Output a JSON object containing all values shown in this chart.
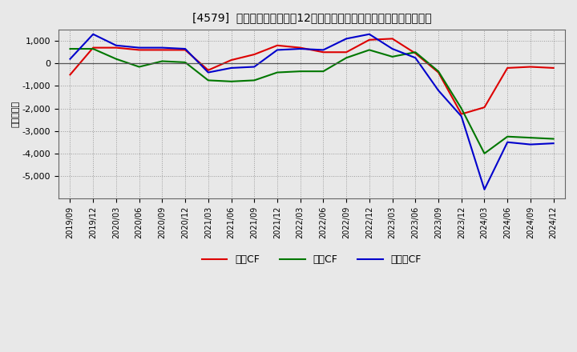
{
  "title": "[4579]  キャッシュフローの12か月移動合計の対前年同期増減額の推移",
  "ylabel": "（百万円）",
  "background_color": "#e8e8e8",
  "plot_bg_color": "#e8e8e8",
  "grid_color": "#999999",
  "xlabels": [
    "2019/09",
    "2019/12",
    "2020/03",
    "2020/06",
    "2020/09",
    "2020/12",
    "2021/03",
    "2021/06",
    "2021/09",
    "2021/12",
    "2022/03",
    "2022/06",
    "2022/09",
    "2022/12",
    "2023/03",
    "2023/06",
    "2023/09",
    "2023/12",
    "2024/03",
    "2024/06",
    "2024/09",
    "2024/12"
  ],
  "eigyo_cf": [
    -500,
    700,
    700,
    600,
    600,
    600,
    -300,
    150,
    400,
    800,
    700,
    500,
    500,
    1050,
    1100,
    450,
    -400,
    -2250,
    -1950,
    -200,
    -150,
    -200
  ],
  "toshi_cf": [
    650,
    650,
    200,
    -150,
    100,
    50,
    -750,
    -800,
    -750,
    -400,
    -350,
    -350,
    250,
    600,
    300,
    500,
    -350,
    -2000,
    -4000,
    -3250,
    -3300,
    -3350
  ],
  "free_cf": [
    200,
    1300,
    800,
    700,
    700,
    650,
    -400,
    -200,
    -150,
    600,
    650,
    600,
    1100,
    1300,
    650,
    250,
    -1200,
    -2350,
    -5600,
    -3500,
    -3600,
    -3550
  ],
  "legend_labels": [
    "営業CF",
    "投資CF",
    "フリーCF"
  ],
  "legend_colors": [
    "#dd0000",
    "#007700",
    "#0000cc"
  ],
  "ylim": [
    -6000,
    1500
  ],
  "yticks": [
    -5000,
    -4000,
    -3000,
    -2000,
    -1000,
    0,
    1000
  ]
}
